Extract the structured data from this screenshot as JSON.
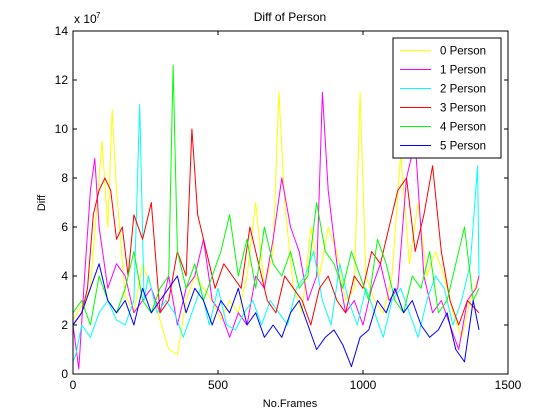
{
  "chart_data": {
    "type": "line",
    "title": "Diff of Person",
    "xlabel": "No.Frames",
    "ylabel": "Diff",
    "y_multiplier_label": "x 10",
    "y_multiplier_exponent": "7",
    "xlim": [
      0,
      1500
    ],
    "ylim": [
      0,
      14
    ],
    "xticks": [
      0,
      500,
      1000,
      1500
    ],
    "yticks": [
      0,
      2,
      4,
      6,
      8,
      10,
      12,
      14
    ],
    "grid": false,
    "legend_position": "top-right",
    "series": [
      {
        "name": "0 Person",
        "color": "#ffff00",
        "x": [
          0,
          30,
          60,
          90,
          100,
          120,
          135,
          150,
          180,
          210,
          240,
          270,
          300,
          330,
          360,
          390,
          420,
          450,
          480,
          510,
          540,
          570,
          600,
          630,
          660,
          690,
          710,
          730,
          760,
          790,
          820,
          850,
          880,
          910,
          940,
          970,
          990,
          1010,
          1040,
          1070,
          1100,
          1130,
          1160,
          1190,
          1220,
          1250,
          1280,
          1310,
          1340,
          1370,
          1400
        ],
        "y": [
          2.2,
          2.8,
          3.5,
          8.0,
          9.5,
          6.0,
          10.8,
          7.5,
          3.2,
          2.5,
          4.5,
          3.5,
          2.2,
          1.0,
          0.8,
          3.0,
          4.0,
          3.5,
          3.0,
          2.2,
          3.0,
          2.5,
          4.0,
          7.0,
          3.5,
          5.0,
          11.5,
          7.0,
          3.5,
          2.5,
          6.0,
          4.0,
          6.0,
          5.0,
          3.0,
          3.5,
          11.5,
          4.0,
          3.0,
          2.5,
          4.0,
          9.0,
          4.5,
          7.0,
          4.0,
          5.0,
          4.0,
          2.5,
          1.5,
          3.0,
          4.0
        ]
      },
      {
        "name": "1 Person",
        "color": "#ff00ff",
        "x": [
          0,
          20,
          40,
          60,
          75,
          90,
          120,
          150,
          180,
          210,
          240,
          270,
          300,
          330,
          360,
          390,
          420,
          450,
          480,
          510,
          540,
          570,
          600,
          630,
          660,
          690,
          720,
          750,
          780,
          810,
          840,
          860,
          880,
          910,
          940,
          970,
          1000,
          1030,
          1060,
          1090,
          1120,
          1150,
          1180,
          1210,
          1240,
          1270,
          1300,
          1330,
          1360,
          1390,
          1400
        ],
        "y": [
          2.0,
          0.2,
          4.0,
          7.5,
          8.8,
          6.0,
          3.5,
          4.5,
          4.0,
          2.5,
          3.0,
          3.5,
          2.5,
          4.0,
          2.0,
          3.5,
          4.0,
          5.5,
          3.0,
          2.5,
          1.5,
          2.5,
          2.0,
          4.0,
          3.5,
          5.5,
          8.0,
          6.0,
          5.0,
          3.0,
          4.0,
          11.5,
          7.5,
          4.5,
          2.5,
          3.0,
          2.0,
          3.5,
          4.5,
          3.0,
          3.5,
          8.0,
          9.5,
          4.0,
          2.5,
          3.0,
          2.0,
          1.0,
          3.0,
          3.5,
          4.0
        ]
      },
      {
        "name": "2 Person",
        "color": "#00ffff",
        "x": [
          0,
          10,
          30,
          60,
          90,
          120,
          150,
          180,
          210,
          230,
          245,
          260,
          290,
          320,
          350,
          380,
          410,
          440,
          470,
          500,
          530,
          560,
          590,
          620,
          650,
          680,
          710,
          740,
          770,
          800,
          830,
          860,
          890,
          920,
          950,
          980,
          1010,
          1040,
          1070,
          1100,
          1130,
          1160,
          1190,
          1220,
          1250,
          1280,
          1310,
          1340,
          1370,
          1395,
          1400
        ],
        "y": [
          0.5,
          0.8,
          2.0,
          1.5,
          2.5,
          3.0,
          2.2,
          2.0,
          3.0,
          11.0,
          3.0,
          4.0,
          2.5,
          3.0,
          2.5,
          1.5,
          2.5,
          3.5,
          2.0,
          3.5,
          2.0,
          1.8,
          2.5,
          3.0,
          2.0,
          3.0,
          2.5,
          2.0,
          3.5,
          4.0,
          5.0,
          3.0,
          2.0,
          4.5,
          3.0,
          2.0,
          3.5,
          2.5,
          1.5,
          3.0,
          3.5,
          2.5,
          1.5,
          3.0,
          4.0,
          3.5,
          2.0,
          3.0,
          4.5,
          8.5,
          4.0
        ]
      },
      {
        "name": "3 Person",
        "color": "#ff0000",
        "x": [
          0,
          30,
          50,
          70,
          90,
          110,
          130,
          150,
          170,
          190,
          210,
          240,
          270,
          300,
          330,
          360,
          390,
          410,
          430,
          460,
          490,
          520,
          550,
          580,
          610,
          640,
          670,
          700,
          730,
          760,
          790,
          820,
          850,
          880,
          910,
          940,
          970,
          1000,
          1030,
          1060,
          1090,
          1120,
          1150,
          1180,
          1210,
          1240,
          1270,
          1300,
          1330,
          1360,
          1400
        ],
        "y": [
          2.0,
          2.5,
          3.5,
          6.5,
          7.5,
          8.0,
          7.5,
          5.5,
          6.0,
          4.0,
          6.5,
          5.5,
          7.0,
          2.5,
          3.0,
          5.0,
          4.0,
          10.0,
          6.5,
          5.0,
          3.5,
          4.5,
          4.0,
          3.5,
          6.0,
          4.5,
          3.0,
          2.5,
          4.0,
          3.5,
          3.0,
          2.0,
          3.5,
          4.0,
          3.0,
          2.5,
          4.0,
          3.5,
          5.0,
          4.5,
          6.0,
          7.5,
          8.0,
          5.0,
          6.5,
          8.5,
          5.0,
          3.0,
          2.0,
          3.0,
          2.5
        ]
      },
      {
        "name": "4 Person",
        "color": "#00ff00",
        "x": [
          0,
          30,
          60,
          90,
          120,
          150,
          180,
          210,
          240,
          270,
          300,
          330,
          345,
          360,
          390,
          420,
          450,
          480,
          510,
          540,
          570,
          600,
          630,
          660,
          690,
          720,
          750,
          780,
          810,
          840,
          870,
          900,
          930,
          960,
          990,
          1020,
          1050,
          1080,
          1110,
          1140,
          1170,
          1200,
          1230,
          1260,
          1290,
          1320,
          1350,
          1380,
          1400
        ],
        "y": [
          2.5,
          3.0,
          2.0,
          4.0,
          3.0,
          2.5,
          3.5,
          5.0,
          3.0,
          2.5,
          3.5,
          4.0,
          12.6,
          5.0,
          3.5,
          4.5,
          3.0,
          4.0,
          5.0,
          6.5,
          4.0,
          5.5,
          3.5,
          6.0,
          4.5,
          4.0,
          5.0,
          3.5,
          4.0,
          7.0,
          5.0,
          4.5,
          3.5,
          5.0,
          4.0,
          3.0,
          5.5,
          4.5,
          3.0,
          2.5,
          4.0,
          3.5,
          5.0,
          2.5,
          3.0,
          4.5,
          6.0,
          3.0,
          3.5
        ]
      },
      {
        "name": "5 Person",
        "color": "#0000ff",
        "x": [
          0,
          30,
          60,
          90,
          120,
          150,
          180,
          210,
          240,
          270,
          300,
          330,
          360,
          390,
          420,
          450,
          480,
          510,
          540,
          570,
          600,
          630,
          660,
          690,
          720,
          750,
          780,
          810,
          840,
          870,
          900,
          930,
          960,
          990,
          1020,
          1050,
          1080,
          1110,
          1140,
          1170,
          1200,
          1230,
          1260,
          1290,
          1320,
          1350,
          1380,
          1400
        ],
        "y": [
          2.0,
          2.5,
          3.5,
          4.5,
          3.0,
          2.5,
          3.0,
          2.0,
          3.5,
          2.5,
          3.0,
          3.5,
          4.0,
          2.5,
          3.5,
          3.0,
          2.0,
          3.0,
          2.5,
          3.5,
          2.0,
          2.5,
          1.5,
          2.0,
          1.5,
          2.5,
          3.0,
          2.0,
          1.0,
          1.5,
          1.8,
          1.2,
          0.3,
          1.5,
          1.8,
          3.0,
          2.5,
          3.5,
          2.5,
          3.0,
          2.0,
          1.5,
          1.8,
          2.5,
          1.0,
          0.5,
          3.0,
          1.8
        ]
      }
    ]
  }
}
